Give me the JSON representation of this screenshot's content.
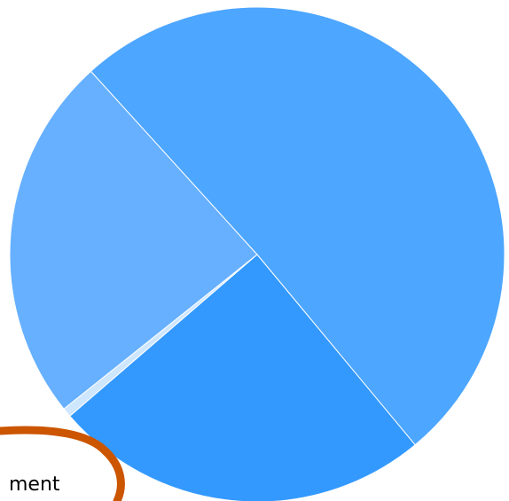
{
  "chart_data": {
    "type": "pie",
    "slices": [
      {
        "value": 24.7,
        "color": "#3399ff"
      },
      {
        "value": 0.6,
        "color": "#cfe6ff"
      },
      {
        "value": 24.0,
        "color": "#66b0ff"
      },
      {
        "value": 50.7,
        "color": "#4da6ff"
      }
    ]
  },
  "annotation": {
    "text": "ment",
    "color": "#cc5500"
  }
}
